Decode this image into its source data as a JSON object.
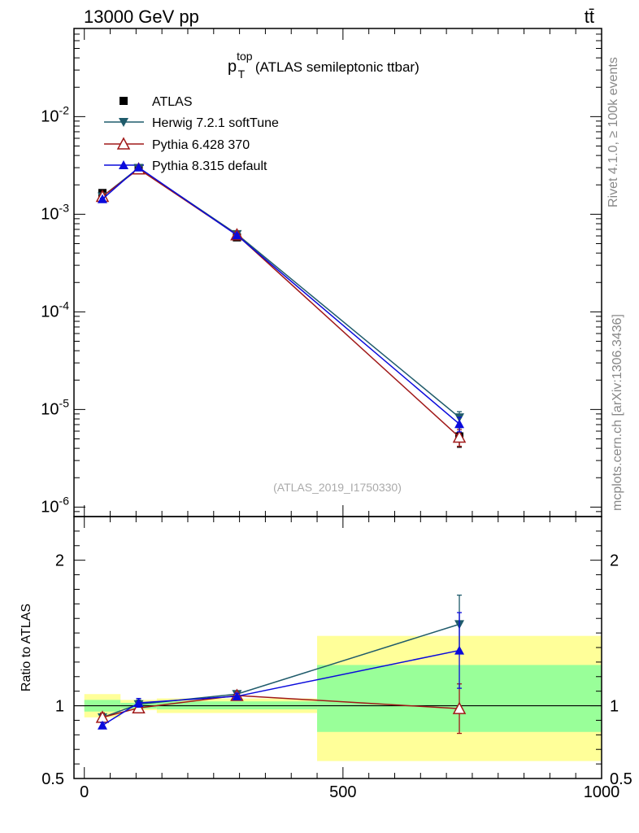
{
  "header": {
    "energy": "13000 GeV pp",
    "process_tag": "tt̄"
  },
  "side_labels": {
    "rivet": "Rivet 4.1.0, ≥ 100k events",
    "source": "mcplots.cern.ch [arXiv:1306.3436]"
  },
  "colors": {
    "data": "#000000",
    "herwig": "#1f5b6b",
    "pythia6": "#a01818",
    "pythia8": "#0a0adc",
    "band_inner": "#99ff99",
    "band_outer": "#ffff99"
  },
  "chart_data": [
    {
      "type": "line",
      "panel": "main",
      "title_main": "p",
      "title_sup": "top",
      "title_sub": "T",
      "title_rest": " (ATLAS semileptonic ttbar)",
      "analysis_id": "(ATLAS_2019_I1750330)",
      "yscale": "log",
      "ylim": [
        8e-07,
        0.08
      ],
      "xlim": [
        -20,
        1000
      ],
      "ytick_labels": [
        {
          "base": "10",
          "exp": "-2",
          "value": 0.01
        },
        {
          "base": "10",
          "exp": "-3",
          "value": 0.001
        },
        {
          "base": "10",
          "exp": "-4",
          "value": 0.0001
        },
        {
          "base": "10",
          "exp": "-5",
          "value": 1e-05
        },
        {
          "base": "10",
          "exp": "-6",
          "value": 1e-06
        }
      ],
      "legend_position": "top-left",
      "series": [
        {
          "key": "data",
          "name": "ATLAS",
          "marker": "square",
          "x": [
            35,
            105,
            295,
            725
          ],
          "y": [
            0.00165,
            0.00295,
            0.00058,
            5.3e-06
          ],
          "yerr_lo": [
            8e-05,
            0.00012,
            3e-05,
            1.2e-06
          ],
          "yerr_hi": [
            8e-05,
            0.00012,
            3e-05,
            1.2e-06
          ]
        },
        {
          "key": "herwig",
          "name": "Herwig 7.2.1 softTune",
          "marker": "triangle-down",
          "x": [
            35,
            105,
            295,
            725
          ],
          "y": [
            0.00152,
            0.00298,
            0.000625,
            8.3e-06
          ],
          "yerr_lo": [
            3e-05,
            5e-05,
            2e-05,
            1.2e-06
          ],
          "yerr_hi": [
            3e-05,
            5e-05,
            2e-05,
            1.2e-06
          ]
        },
        {
          "key": "pythia6",
          "name": "Pythia 6.428 370",
          "marker": "triangle-open",
          "x": [
            35,
            105,
            295,
            725
          ],
          "y": [
            0.00152,
            0.00291,
            0.000615,
            5.2e-06
          ],
          "yerr_lo": [
            3e-05,
            5e-05,
            2e-05,
            1e-06
          ],
          "yerr_hi": [
            3e-05,
            5e-05,
            2e-05,
            1e-06
          ]
        },
        {
          "key": "pythia8",
          "name": "Pythia 8.315 default",
          "marker": "triangle-up",
          "x": [
            35,
            105,
            295,
            725
          ],
          "y": [
            0.00143,
            0.00302,
            0.00061,
            7.1e-06
          ],
          "yerr_lo": [
            3e-05,
            5e-05,
            2e-05,
            1.2e-06
          ],
          "yerr_hi": [
            3e-05,
            5e-05,
            2e-05,
            1.2e-06
          ]
        }
      ]
    },
    {
      "type": "line",
      "panel": "ratio",
      "ylabel": "Ratio to ATLAS",
      "xlim": [
        -20,
        1000
      ],
      "ylim": [
        0.5,
        2.3
      ],
      "yticks": [
        0.5,
        1,
        2
      ],
      "ytick_labels": [
        "0.5",
        "1",
        "2"
      ],
      "xticks": [
        0,
        500,
        1000
      ],
      "xtick_labels": [
        "0",
        "500",
        "1000"
      ],
      "bands": [
        {
          "x_lo": 0,
          "x_hi": 70,
          "inner": [
            0.96,
            1.04
          ],
          "outer": [
            0.92,
            1.08
          ]
        },
        {
          "x_lo": 70,
          "x_hi": 140,
          "inner": [
            0.98,
            1.02
          ],
          "outer": [
            0.97,
            1.04
          ]
        },
        {
          "x_lo": 140,
          "x_hi": 450,
          "inner": [
            0.975,
            1.03
          ],
          "outer": [
            0.95,
            1.05
          ]
        },
        {
          "x_lo": 450,
          "x_hi": 1000,
          "inner": [
            0.82,
            1.28
          ],
          "outer": [
            0.62,
            1.48
          ]
        }
      ],
      "series": [
        {
          "key": "herwig",
          "marker": "triangle-down",
          "x": [
            35,
            105,
            295,
            725
          ],
          "y": [
            0.92,
            1.01,
            1.08,
            1.56
          ],
          "yerr_lo": [
            0.03,
            0.03,
            0.02,
            0.2
          ],
          "yerr_hi": [
            0.03,
            0.03,
            0.02,
            0.2
          ]
        },
        {
          "key": "pythia6",
          "marker": "triangle-open",
          "x": [
            35,
            105,
            295,
            725
          ],
          "y": [
            0.92,
            0.985,
            1.07,
            0.98
          ],
          "yerr_lo": [
            0.03,
            0.02,
            0.02,
            0.17
          ],
          "yerr_hi": [
            0.03,
            0.02,
            0.02,
            0.17
          ]
        },
        {
          "key": "pythia8",
          "marker": "triangle-up",
          "x": [
            35,
            105,
            295,
            725
          ],
          "y": [
            0.865,
            1.02,
            1.065,
            1.38
          ],
          "yerr_lo": [
            0.02,
            0.03,
            0.02,
            0.26
          ],
          "yerr_hi": [
            0.02,
            0.03,
            0.02,
            0.26
          ]
        }
      ]
    }
  ]
}
